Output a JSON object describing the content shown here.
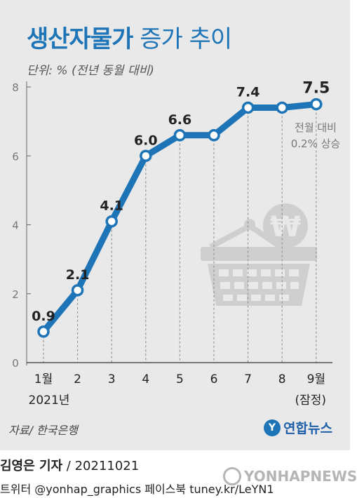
{
  "title_bold": "생산자물가",
  "title_light": " 증가 추이",
  "unit": "단위: % (전년 동월 대비)",
  "chart_data": {
    "type": "line",
    "categories": [
      "1월",
      "2",
      "3",
      "4",
      "5",
      "6",
      "7",
      "8",
      "9월"
    ],
    "category_sublabels": [
      "2021년",
      "",
      "",
      "",
      "",
      "",
      "",
      "",
      "(잠정)"
    ],
    "values": [
      0.9,
      2.1,
      4.1,
      6.0,
      6.6,
      6.6,
      7.4,
      7.4,
      7.5
    ],
    "data_labels": [
      "0.9",
      "2.1",
      "4.1",
      "6.0",
      "6.6",
      "",
      "7.4",
      "",
      "7.5"
    ],
    "yticks": [
      "0",
      "2",
      "4",
      "6",
      "8"
    ],
    "ylim": [
      0,
      8
    ],
    "annotation_line1": "전월 대비",
    "annotation_line2": "0.2% 상승",
    "line_color": "#1d74b6",
    "grid": false
  },
  "source": "자료/ 한국은행",
  "logo_text": "연합뉴스",
  "credit_name": "김영은 기자",
  "credit_date": " / 20211021",
  "social": "트위터 @yonhap_graphics  페이스북 tuney.kr/LeYN1",
  "watermark": "YONHAPNEWS"
}
